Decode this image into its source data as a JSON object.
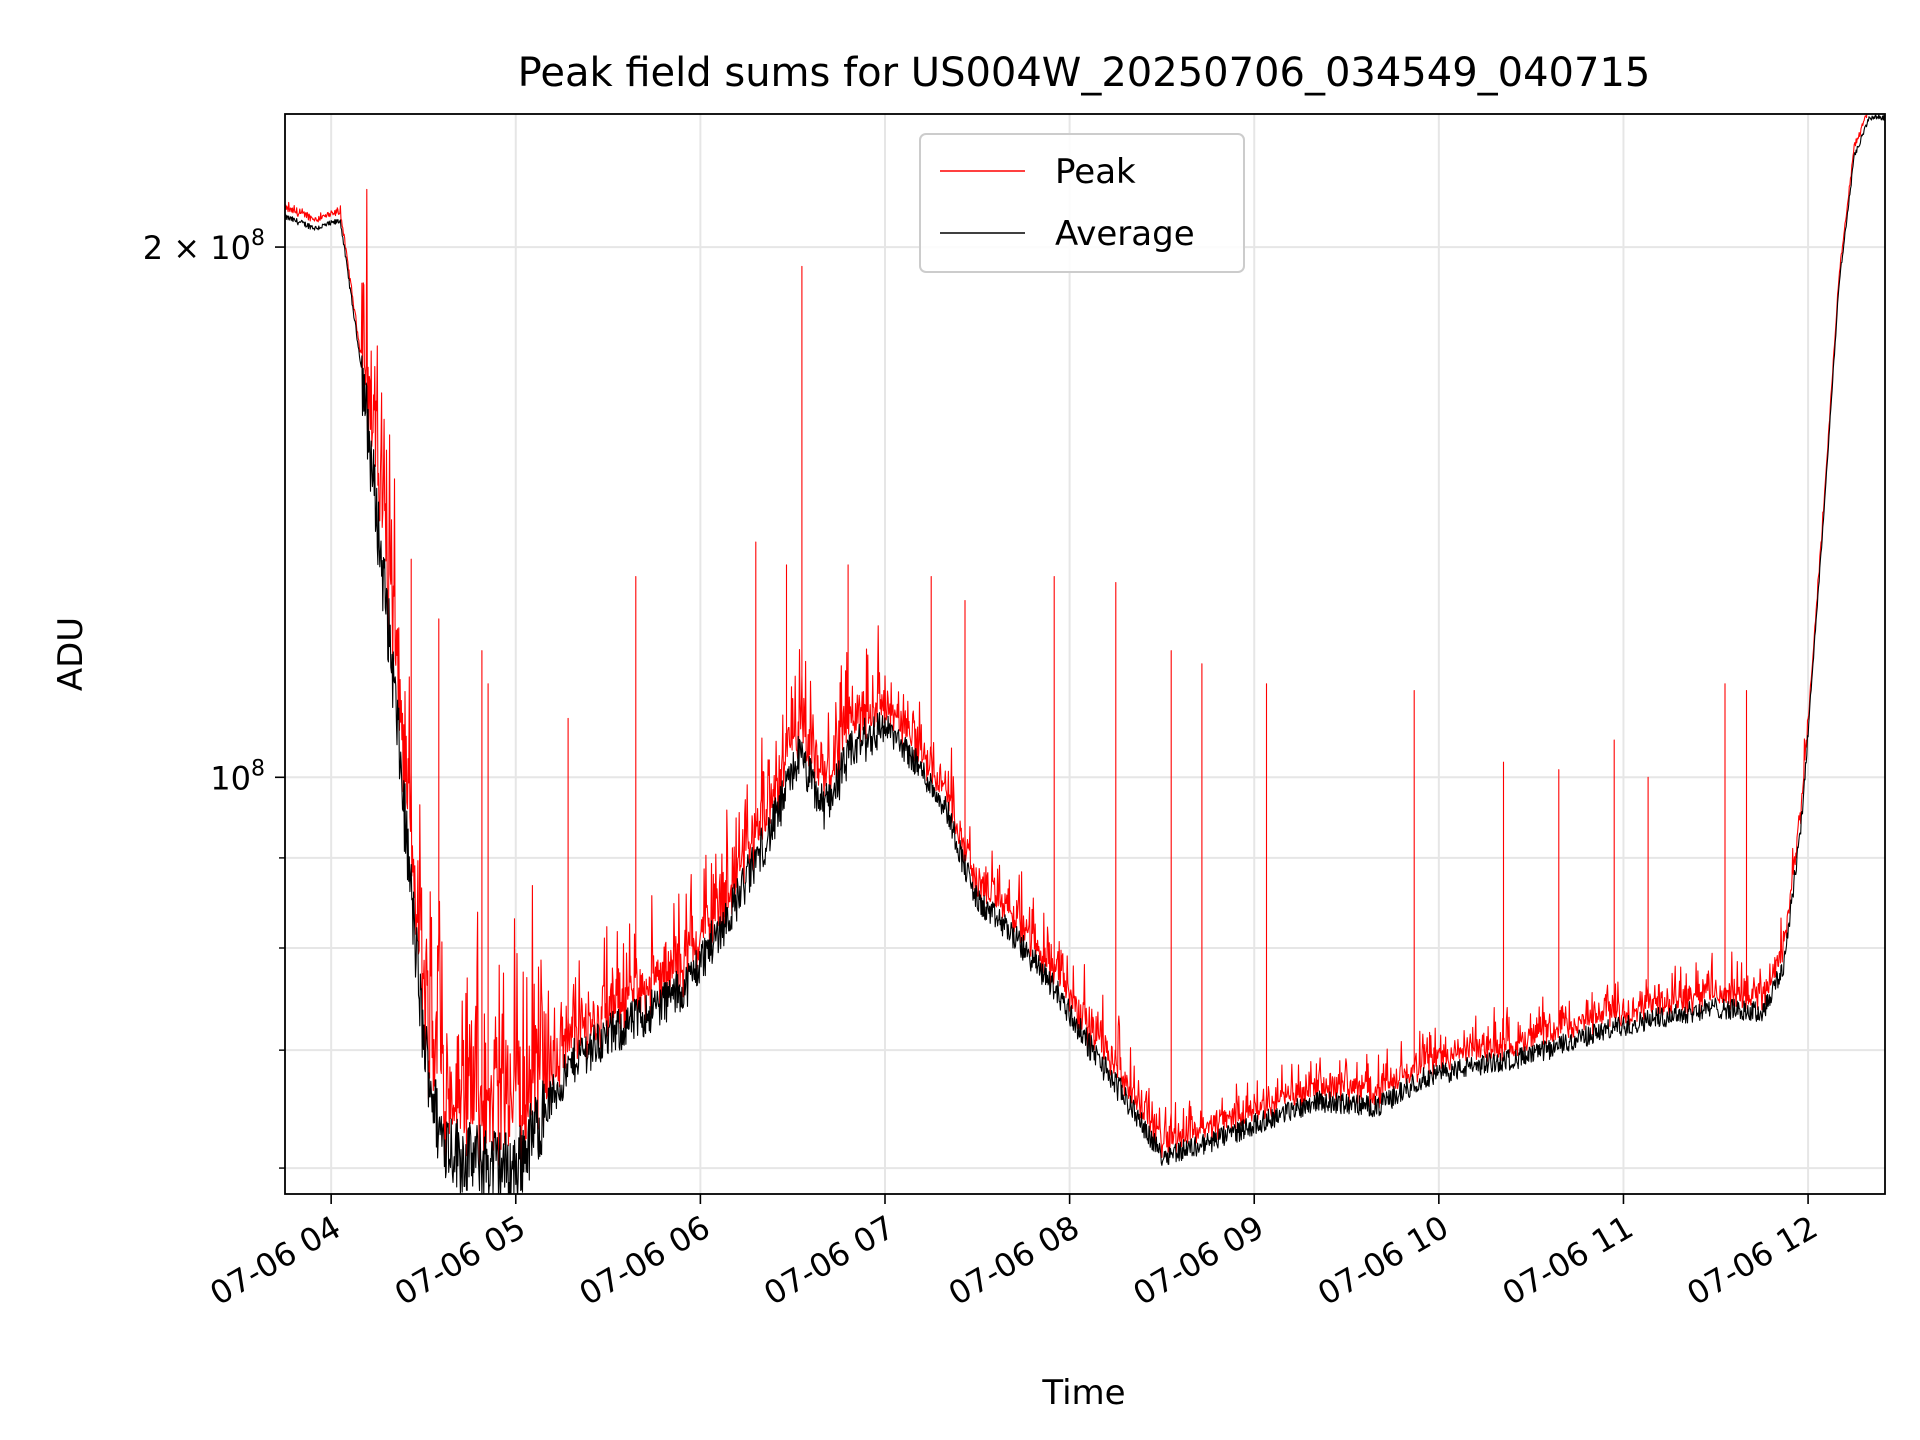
{
  "chart_data": {
    "type": "line",
    "title": "Peak field sums for US004W_20250706_034549_040715",
    "xlabel": "Time",
    "ylabel": "ADU",
    "x_range": [
      "2025-07-06 03:45",
      "2025-07-06 12:25"
    ],
    "y_range": [
      58000000,
      238000000
    ],
    "y_scale": "log",
    "grid": true,
    "legend_position": "upper center",
    "x_ticks": [
      {
        "value": "2025-07-06 04:00",
        "label": "07-06 04"
      },
      {
        "value": "2025-07-06 05:00",
        "label": "07-06 05"
      },
      {
        "value": "2025-07-06 06:00",
        "label": "07-06 06"
      },
      {
        "value": "2025-07-06 07:00",
        "label": "07-06 07"
      },
      {
        "value": "2025-07-06 08:00",
        "label": "07-06 08"
      },
      {
        "value": "2025-07-06 09:00",
        "label": "07-06 09"
      },
      {
        "value": "2025-07-06 10:00",
        "label": "07-06 10"
      },
      {
        "value": "2025-07-06 11:00",
        "label": "07-06 11"
      },
      {
        "value": "2025-07-06 12:00",
        "label": "07-06 12"
      }
    ],
    "y_major_ticks": [
      {
        "value": 100000000,
        "base": "10",
        "exp": "8",
        "mantissa": ""
      },
      {
        "value": 200000000,
        "base": "10",
        "exp": "8",
        "mantissa": "2 × "
      }
    ],
    "y_minor_ticks": [
      60000000,
      70000000,
      80000000,
      90000000
    ],
    "series": [
      {
        "name": "Peak",
        "color": "#ff0000"
      },
      {
        "name": "Average",
        "color": "#000000"
      }
    ],
    "average_profile": [
      [
        "2025-07-06 03:45",
        208000000
      ],
      [
        "2025-07-06 03:55",
        205000000
      ],
      [
        "2025-07-06 04:03",
        207000000
      ],
      [
        "2025-07-06 04:10",
        170000000
      ],
      [
        "2025-07-06 04:15",
        140000000
      ],
      [
        "2025-07-06 04:20",
        115000000
      ],
      [
        "2025-07-06 04:25",
        90000000
      ],
      [
        "2025-07-06 04:30",
        71000000
      ],
      [
        "2025-07-06 04:35",
        63000000
      ],
      [
        "2025-07-06 04:42",
        61000000
      ],
      [
        "2025-07-06 04:50",
        60500000
      ],
      [
        "2025-07-06 05:00",
        60000000
      ],
      [
        "2025-07-06 05:10",
        65000000
      ],
      [
        "2025-07-06 05:20",
        69500000
      ],
      [
        "2025-07-06 05:40",
        73000000
      ],
      [
        "2025-07-06 05:55",
        76000000
      ],
      [
        "2025-07-06 06:10",
        84000000
      ],
      [
        "2025-07-06 06:25",
        95000000
      ],
      [
        "2025-07-06 06:32",
        103000000
      ],
      [
        "2025-07-06 06:40",
        96000000
      ],
      [
        "2025-07-06 06:50",
        104000000
      ],
      [
        "2025-07-06 07:00",
        107000000
      ],
      [
        "2025-07-06 07:10",
        102000000
      ],
      [
        "2025-07-06 07:20",
        96000000
      ],
      [
        "2025-07-06 07:25",
        90000000
      ],
      [
        "2025-07-06 07:30",
        85000000
      ],
      [
        "2025-07-06 07:40",
        82000000
      ],
      [
        "2025-07-06 07:55",
        76000000
      ],
      [
        "2025-07-06 08:05",
        71000000
      ],
      [
        "2025-07-06 08:20",
        65000000
      ],
      [
        "2025-07-06 08:30",
        61000000
      ],
      [
        "2025-07-06 08:45",
        62000000
      ],
      [
        "2025-07-06 09:00",
        63500000
      ],
      [
        "2025-07-06 09:20",
        65500000
      ],
      [
        "2025-07-06 09:40",
        65000000
      ],
      [
        "2025-07-06 09:55",
        67500000
      ],
      [
        "2025-07-06 10:10",
        68500000
      ],
      [
        "2025-07-06 10:30",
        69500000
      ],
      [
        "2025-07-06 10:50",
        71500000
      ],
      [
        "2025-07-06 11:10",
        73000000
      ],
      [
        "2025-07-06 11:30",
        74000000
      ],
      [
        "2025-07-06 11:45",
        73500000
      ],
      [
        "2025-07-06 11:52",
        78000000
      ],
      [
        "2025-07-06 11:58",
        95000000
      ],
      [
        "2025-07-06 12:05",
        140000000
      ],
      [
        "2025-07-06 12:10",
        190000000
      ],
      [
        "2025-07-06 12:15",
        225000000
      ],
      [
        "2025-07-06 12:20",
        237000000
      ]
    ],
    "peak_spikes": [
      [
        "2025-07-06 04:26",
        133000000
      ],
      [
        "2025-07-06 04:35",
        123000000
      ],
      [
        "2025-07-06 04:49",
        118000000
      ],
      [
        "2025-07-06 04:51",
        113000000
      ],
      [
        "2025-07-06 05:17",
        108000000
      ],
      [
        "2025-07-06 05:39",
        130000000
      ],
      [
        "2025-07-06 06:18",
        136000000
      ],
      [
        "2025-07-06 06:28",
        132000000
      ],
      [
        "2025-07-06 06:33",
        195000000
      ],
      [
        "2025-07-06 06:48",
        132000000
      ],
      [
        "2025-07-06 07:15",
        130000000
      ],
      [
        "2025-07-06 07:26",
        126000000
      ],
      [
        "2025-07-06 07:55",
        130000000
      ],
      [
        "2025-07-06 08:15",
        129000000
      ],
      [
        "2025-07-06 08:33",
        118000000
      ],
      [
        "2025-07-06 08:43",
        116000000
      ],
      [
        "2025-07-06 09:04",
        113000000
      ],
      [
        "2025-07-06 09:52",
        112000000
      ],
      [
        "2025-07-06 10:21",
        102000000
      ],
      [
        "2025-07-06 10:39",
        101000000
      ],
      [
        "2025-07-06 10:57",
        105000000
      ],
      [
        "2025-07-06 11:08",
        100000000
      ],
      [
        "2025-07-06 11:33",
        113000000
      ],
      [
        "2025-07-06 11:40",
        112000000
      ]
    ]
  }
}
